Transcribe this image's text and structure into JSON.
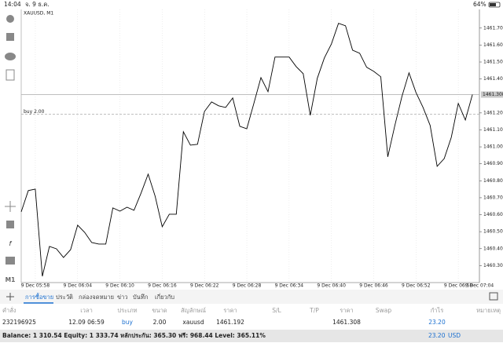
{
  "status_bar": {
    "time": "14:04",
    "date": "จ. 9 ธ.ค.",
    "battery": "64%"
  },
  "sidebar": {
    "timeframe": "M1"
  },
  "chart_data": {
    "type": "line",
    "title": "XAUUSD, M1",
    "color": "#000000",
    "categories": [
      null,
      null,
      "9 Dec 05:58",
      null,
      null,
      null,
      null,
      null,
      "9 Dec 06:04",
      null,
      null,
      null,
      null,
      null,
      "9 Dec 06:10",
      null,
      null,
      null,
      null,
      null,
      "9 Dec 06:16",
      null,
      null,
      null,
      null,
      null,
      "9 Dec 06:22",
      null,
      null,
      null,
      null,
      null,
      "9 Dec 06:28",
      null,
      null,
      null,
      null,
      null,
      "9 Dec 06:34",
      null,
      null,
      null,
      null,
      null,
      "9 Dec 06:40",
      null,
      null,
      null,
      null,
      null,
      "9 Dec 06:46",
      null,
      null,
      null,
      null,
      null,
      "9 Dec 06:52",
      null,
      null,
      null,
      null,
      null,
      "9 Dec 06:58",
      null,
      null,
      null,
      null,
      null,
      "9 Dec 07:04"
    ],
    "values": [
      1460.617,
      1460.742,
      1460.751,
      1460.237,
      1460.413,
      1460.399,
      1460.348,
      1460.394,
      1460.538,
      1460.496,
      1460.436,
      1460.427,
      1460.427,
      1460.64,
      1460.621,
      1460.644,
      1460.626,
      1460.728,
      1460.839,
      1460.709,
      1460.529,
      1460.603,
      1460.603,
      1461.089,
      1461.01,
      1461.015,
      1461.209,
      1461.265,
      1461.242,
      1461.232,
      1461.288,
      1461.121,
      1461.107,
      1461.256,
      1461.408,
      1461.325,
      1461.529,
      1461.529,
      1461.529,
      1461.473,
      1461.431,
      1461.186,
      1461.404,
      1461.524,
      1461.607,
      1461.728,
      1461.714,
      1461.57,
      1461.552,
      1461.469,
      1461.445,
      1461.413,
      1460.941,
      1461.126,
      1461.297,
      1461.436,
      1461.32,
      1461.232,
      1461.126,
      1460.885,
      1460.931,
      1461.056,
      1461.256,
      1461.158,
      1461.308,
      null,
      null,
      null,
      null
    ],
    "ylim": [
      1460.2,
      1461.81
    ],
    "yticks": [
      {
        "value": 1461.7,
        "label": "1461.700"
      },
      {
        "value": 1461.6,
        "label": "1461.600"
      },
      {
        "value": 1461.5,
        "label": "1461.500"
      },
      {
        "value": 1461.4,
        "label": "1461.400"
      },
      {
        "value": 1461.2,
        "label": "1461.200"
      },
      {
        "value": 1461.1,
        "label": "1461.100"
      },
      {
        "value": 1461.0,
        "label": "1461.000"
      },
      {
        "value": 1460.9,
        "label": "1460.900"
      },
      {
        "value": 1460.8,
        "label": "1460.800"
      },
      {
        "value": 1460.7,
        "label": "1460.700"
      },
      {
        "value": 1460.6,
        "label": "1460.600"
      },
      {
        "value": 1460.5,
        "label": "1460.500"
      },
      {
        "value": 1460.4,
        "label": "1460.400"
      },
      {
        "value": 1460.3,
        "label": "1460.300"
      }
    ],
    "price_line": {
      "value": 1461.308,
      "label": "1461.308"
    },
    "order_line": {
      "value": 1461.192,
      "label": "buy 2.00"
    }
  },
  "tabs": [
    "การซื้อขาย",
    "ประวัติ",
    "กล่องจดหมาย",
    "ข่าว",
    "บันทึก",
    "เกี่ยวกับ"
  ],
  "table": {
    "headers": {
      "order": "คำสั่ง",
      "time": "เวลา",
      "type": "ประเภท",
      "size": "ขนาด",
      "symbol": "สัญลักษณ์",
      "open_price": "ราคา",
      "sl": "S/L",
      "tp": "T/P",
      "price": "ราคา",
      "swap": "Swap",
      "profit": "กำไร",
      "comment": "หมายเหตุ"
    },
    "rows": [
      {
        "order": "232196925",
        "time": "12.09 06:59",
        "type": "buy",
        "size": "2.00",
        "symbol": "xauusd",
        "open_price": "1461.192",
        "price": "1461.308",
        "profit": "23.20"
      }
    ]
  },
  "footer": {
    "summary": "Balance: 1 310.54 Equity: 1 333.74 หลักประกัน: 365.30 ฟรี: 968.44 Level: 365.11%",
    "profit": "23.20",
    "currency": "USD"
  }
}
